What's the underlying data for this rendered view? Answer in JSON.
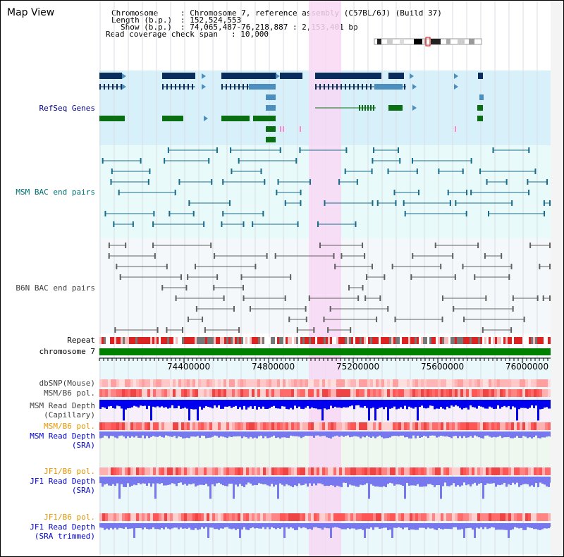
{
  "window": {
    "title": "Map View"
  },
  "header": {
    "chromosome_key": "Chromosome",
    "chromosome_value": ": Chromosome 7, reference assembly (C57BL/6J) (Build 37)",
    "length_key": "Length (b.p.)",
    "length_value": ": 152,524,553",
    "show_key": "Show (b.p.)",
    "show_value": ": 74,065,487-76,218,887 : 2,153,401 bp",
    "coverage_key": "Read coverage check span",
    "coverage_value": ": 10,000"
  },
  "tracks": {
    "refseq_genes": "RefSeq Genes",
    "msm_bac": "MSM BAC end pairs",
    "b6n_bac": "B6N BAC end pairs",
    "repeat": "Repeat",
    "chromosome": "chromosome 7",
    "dbsnp": "dbSNP(Mouse)",
    "msm_b6_pol_1": "MSM/B6 pol.",
    "msm_read_depth_cap_1": "MSM Read Depth",
    "msm_read_depth_cap_2": "(Capillary)",
    "msm_b6_pol_2": "MSM/B6 pol.",
    "msm_read_depth_sra_1": "MSM Read Depth",
    "msm_read_depth_sra_2": "(SRA)",
    "jf1_b6_pol_1": "JF1/B6 pol.",
    "jf1_read_depth_sra_1": "JF1 Read Depth",
    "jf1_read_depth_sra_2": "(SRA)",
    "jf1_b6_pol_2": "JF1/B6 pol.",
    "jf1_read_depth_trim_1": "JF1 Read Depth",
    "jf1_read_depth_trim_2": "(SRA trimmed)"
  },
  "axis": {
    "ticks": [
      "74400000",
      "74800000",
      "75200000",
      "75600000",
      "76000000"
    ]
  },
  "colors": {
    "refseq_bg": "#d8f0fa",
    "bac_bg": "#e8fafa",
    "highlight": "#f8d8f4",
    "gene_dark": "#0b2d5c",
    "gene_mid": "#4c8fbf",
    "gene_green": "#0a6e12",
    "chromosome_bar": "#008000",
    "read_depth_dark": "#0000ee",
    "read_depth_light": "#7777ee"
  }
}
